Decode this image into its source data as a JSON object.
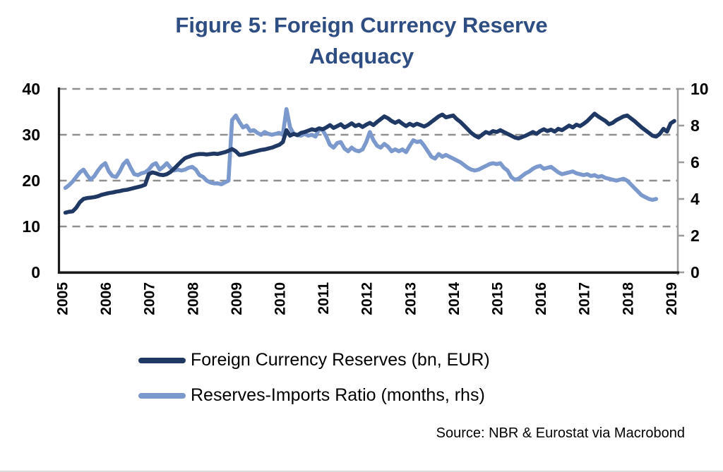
{
  "page": {
    "title_line1": "Figure 5: Foreign Currency Reserve",
    "title_line2": "Adequacy",
    "source": "Source: NBR & Eurostat via Macrobond"
  },
  "legend": {
    "series1": "Foreign Currency Reserves (bn, EUR)",
    "series2": "Reserves-Imports Ratio (months, rhs)"
  },
  "colors": {
    "title": "#2e4d82",
    "series1": "#1f3864",
    "series2": "#7b99cc",
    "grid": "#8f8f8f",
    "axis": "#1a1a1a",
    "right_axis": "#9d9d9d"
  },
  "chart_data": {
    "type": "line",
    "title": "Figure 5: Foreign Currency Reserve Adequacy",
    "source": "Source: NBR & Eurostat via Macrobond",
    "legend_position": "bottom",
    "grid": "dashed-horizontal",
    "grid_values_left": [
      10,
      20,
      30,
      40
    ],
    "x_axis": {
      "ticks": [
        2005,
        2006,
        2007,
        2008,
        2009,
        2010,
        2011,
        2012,
        2013,
        2014,
        2015,
        2016,
        2017,
        2018,
        2019
      ],
      "range": [
        2005,
        2019.2
      ]
    },
    "left_axis": {
      "label": "Foreign Currency Reserves (bn, EUR)",
      "ticks": [
        0,
        10,
        20,
        30,
        40
      ],
      "range": [
        0,
        40
      ]
    },
    "right_axis": {
      "label": "Reserves-Imports Ratio (months)",
      "ticks": [
        0,
        2,
        4,
        6,
        8,
        10
      ],
      "range": [
        0,
        10
      ]
    },
    "series": [
      {
        "name": "Foreign Currency Reserves (bn, EUR)",
        "axis": "left",
        "color": "#1f3864",
        "x_start": 2005.083,
        "x_step": 0.083333,
        "values": [
          13.0,
          13.2,
          13.3,
          14.1,
          15.3,
          16.0,
          16.2,
          16.3,
          16.4,
          16.6,
          16.9,
          17.1,
          17.3,
          17.4,
          17.6,
          17.7,
          17.9,
          18.0,
          18.2,
          18.4,
          18.6,
          18.8,
          19.1,
          21.4,
          21.8,
          21.6,
          21.3,
          21.2,
          21.4,
          21.9,
          22.6,
          23.4,
          24.2,
          24.9,
          25.2,
          25.5,
          25.7,
          25.8,
          25.8,
          25.7,
          25.8,
          25.9,
          25.8,
          26.0,
          26.2,
          26.5,
          26.9,
          26.4,
          25.6,
          25.7,
          25.9,
          26.1,
          26.3,
          26.5,
          26.7,
          26.8,
          27.0,
          27.2,
          27.5,
          27.8,
          28.4,
          31.0,
          29.8,
          30.2,
          29.9,
          30.4,
          30.6,
          30.9,
          31.2,
          31.0,
          31.4,
          31.2,
          31.6,
          32.1,
          31.5,
          31.9,
          32.3,
          31.6,
          32.0,
          32.5,
          31.9,
          32.2,
          31.7,
          32.2,
          32.6,
          32.1,
          32.8,
          33.4,
          34.0,
          33.6,
          33.0,
          32.6,
          33.0,
          32.4,
          31.9,
          32.4,
          32.0,
          32.4,
          32.1,
          31.8,
          32.2,
          32.8,
          33.4,
          34.0,
          34.4,
          33.8,
          34.0,
          34.2,
          33.4,
          32.8,
          32.0,
          31.2,
          30.4,
          29.8,
          29.4,
          30.0,
          30.6,
          30.3,
          30.8,
          30.6,
          31.0,
          30.6,
          30.2,
          29.8,
          29.4,
          29.2,
          29.5,
          29.8,
          30.2,
          30.6,
          30.2,
          30.8,
          31.2,
          30.8,
          31.1,
          30.7,
          31.3,
          31.0,
          31.5,
          32.0,
          31.6,
          32.2,
          31.9,
          32.4,
          33.0,
          33.8,
          34.6,
          34.0,
          33.5,
          33.0,
          32.3,
          32.6,
          33.2,
          33.6,
          34.0,
          34.2,
          33.6,
          33.0,
          32.3,
          31.6,
          31.0,
          30.4,
          29.8,
          29.6,
          30.2,
          31.3,
          30.7,
          32.5,
          33.0
        ]
      },
      {
        "name": "Reserves-Imports Ratio (months, rhs)",
        "axis": "right",
        "color": "#7b99cc",
        "x_start": 2005.083,
        "x_step": 0.083333,
        "values": [
          4.6,
          4.75,
          4.95,
          5.2,
          5.45,
          5.6,
          5.3,
          5.05,
          5.25,
          5.55,
          5.8,
          5.95,
          5.5,
          5.25,
          5.2,
          5.5,
          5.9,
          6.1,
          5.7,
          5.35,
          5.3,
          5.4,
          5.45,
          5.6,
          5.85,
          5.95,
          5.6,
          5.75,
          5.95,
          5.7,
          5.55,
          5.6,
          5.55,
          5.6,
          5.7,
          5.75,
          5.6,
          5.3,
          5.2,
          5.0,
          4.9,
          4.85,
          4.85,
          4.8,
          4.9,
          5.0,
          8.3,
          8.55,
          8.2,
          7.9,
          8.0,
          7.7,
          7.75,
          7.6,
          7.5,
          7.65,
          7.55,
          7.5,
          7.55,
          7.6,
          7.5,
          8.9,
          7.9,
          7.55,
          7.5,
          7.45,
          7.55,
          7.45,
          7.5,
          7.4,
          7.8,
          7.75,
          7.4,
          6.95,
          6.8,
          7.05,
          7.1,
          6.75,
          6.6,
          6.8,
          6.65,
          6.6,
          6.7,
          7.1,
          7.65,
          7.2,
          6.9,
          6.8,
          7.0,
          6.85,
          6.6,
          6.7,
          6.6,
          6.7,
          6.55,
          6.9,
          7.2,
          7.1,
          7.15,
          6.9,
          6.6,
          6.3,
          6.2,
          6.45,
          6.3,
          6.4,
          6.3,
          6.2,
          6.1,
          6.0,
          5.85,
          5.7,
          5.6,
          5.55,
          5.6,
          5.7,
          5.8,
          5.9,
          5.95,
          5.9,
          5.95,
          5.7,
          5.55,
          5.2,
          5.05,
          5.1,
          5.25,
          5.4,
          5.5,
          5.65,
          5.75,
          5.8,
          5.65,
          5.7,
          5.75,
          5.6,
          5.45,
          5.35,
          5.4,
          5.45,
          5.5,
          5.4,
          5.35,
          5.3,
          5.35,
          5.25,
          5.3,
          5.2,
          5.25,
          5.15,
          5.1,
          5.05,
          5.0,
          5.05,
          5.1,
          5.0,
          4.8,
          4.6,
          4.4,
          4.2,
          4.1,
          4.0,
          3.95,
          4.0
        ]
      }
    ]
  }
}
